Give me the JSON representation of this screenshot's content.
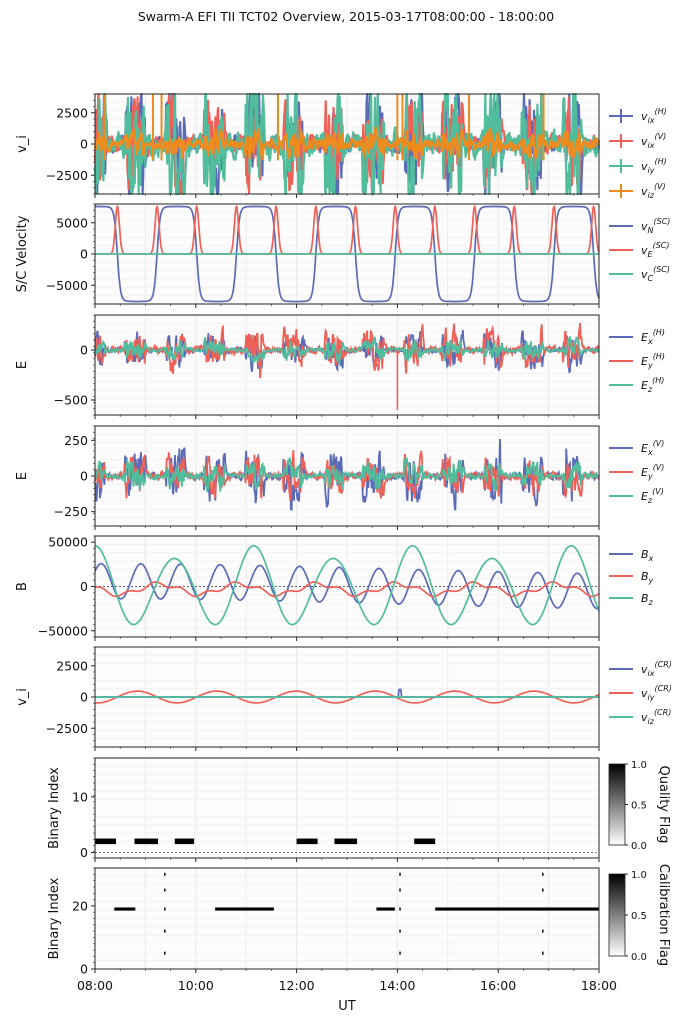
{
  "figure_title": "Swarm-A EFI TII TCT02 Overview, 2015-03-17T08:00:00 - 18:00:00",
  "colors": {
    "blue": "#5b6bb6",
    "red": "#ee6158",
    "teal": "#52bd9d",
    "orange": "#ed8b1e"
  },
  "chart_data": [
    {
      "type": "line",
      "ylabel": "v_i",
      "ylim": [
        -4000,
        4000
      ],
      "y_ticks": [
        2500,
        0,
        -2500
      ],
      "y_tick_labels": [
        "2500",
        "0",
        "−2500"
      ],
      "grid": true,
      "legend_position": "right",
      "series": [
        {
          "name": "v_ix^(H)",
          "color": "blue",
          "marker": "+",
          "approx_range": [
            -4000,
            4000
          ]
        },
        {
          "name": "v_ix^(V)",
          "color": "red",
          "marker": "+",
          "approx_range": [
            -4000,
            4000
          ]
        },
        {
          "name": "v_iy^(H)",
          "color": "teal",
          "marker": "+",
          "approx_range": [
            -4000,
            4000
          ]
        },
        {
          "name": "v_iz^(V)",
          "color": "orange",
          "marker": "+",
          "approx_range": [
            -1500,
            4000
          ]
        }
      ]
    },
    {
      "type": "line",
      "ylabel": "S/C Velocity",
      "ylim": [
        -8000,
        8000
      ],
      "y_ticks": [
        5000,
        0,
        -5000
      ],
      "y_tick_labels": [
        "5000",
        "0",
        "−5000"
      ],
      "grid": true,
      "legend_position": "right",
      "series": [
        {
          "name": "v_N^(SC)",
          "color": "blue",
          "approx_range": [
            -7600,
            7600
          ]
        },
        {
          "name": "v_E^(SC)",
          "color": "red",
          "approx_range": [
            0,
            7600
          ]
        },
        {
          "name": "v_C^(SC)",
          "color": "teal",
          "approx_range": [
            0,
            0
          ]
        }
      ]
    },
    {
      "type": "line",
      "ylabel": "E",
      "ylim": [
        -650,
        350
      ],
      "y_ticks": [
        0,
        -500
      ],
      "y_tick_labels": [
        "0",
        "−500"
      ],
      "grid": true,
      "legend_position": "right",
      "series": [
        {
          "name": "E_x^(H)",
          "color": "blue",
          "approx_range": [
            -200,
            300
          ]
        },
        {
          "name": "E_y^(H)",
          "color": "red",
          "approx_range": [
            -600,
            280
          ]
        },
        {
          "name": "E_z^(H)",
          "color": "teal",
          "approx_range": [
            -130,
            170
          ]
        }
      ]
    },
    {
      "type": "line",
      "ylabel": "E",
      "ylim": [
        -350,
        350
      ],
      "y_ticks": [
        250,
        0,
        -250
      ],
      "y_tick_labels": [
        "250",
        "0",
        "−250"
      ],
      "grid": true,
      "legend_position": "right",
      "series": [
        {
          "name": "E_x^(V)",
          "color": "blue",
          "approx_range": [
            -260,
            320
          ]
        },
        {
          "name": "E_y^(V)",
          "color": "red",
          "approx_range": [
            -310,
            210
          ]
        },
        {
          "name": "E_z^(V)",
          "color": "teal",
          "approx_range": [
            -160,
            140
          ]
        }
      ]
    },
    {
      "type": "line",
      "ylabel": "B",
      "ylim": [
        -57000,
        57000
      ],
      "y_ticks": [
        50000,
        0,
        -50000
      ],
      "y_tick_labels": [
        "50000",
        "0",
        "−50000"
      ],
      "grid": true,
      "legend_position": "right",
      "series": [
        {
          "name": "B_x",
          "color": "blue",
          "approx_range": [
            -28000,
            30000
          ]
        },
        {
          "name": "B_y",
          "color": "red",
          "approx_range": [
            -12000,
            7000
          ]
        },
        {
          "name": "B_z",
          "color": "teal",
          "approx_range": [
            -52000,
            48000
          ]
        }
      ]
    },
    {
      "type": "line",
      "ylabel": "v_i",
      "ylim": [
        -4000,
        4000
      ],
      "y_ticks": [
        2500,
        0,
        -2500
      ],
      "y_tick_labels": [
        "2500",
        "0",
        "−2500"
      ],
      "grid": true,
      "legend_position": "right",
      "series": [
        {
          "name": "v_ix^(CR)",
          "color": "blue",
          "approx_range": [
            -150,
            650
          ]
        },
        {
          "name": "v_iy^(CR)",
          "color": "red",
          "approx_range": [
            -470,
            470
          ]
        },
        {
          "name": "v_iz^(CR)",
          "color": "teal",
          "approx_range": [
            0,
            0
          ]
        }
      ]
    },
    {
      "type": "heatmap",
      "ylabel": "Binary Index",
      "ylim": [
        -1,
        17
      ],
      "y_ticks": [
        10,
        0
      ],
      "y_tick_labels": [
        "10",
        "0"
      ],
      "colorbar_label": "Quality Flag",
      "colorbar_range": [
        0,
        1
      ],
      "colorbar_ticks": [
        "1.0",
        "0.5",
        "0.0"
      ],
      "set_bits": [
        {
          "bit": 2,
          "intervals": [
            [
              "08:00",
              "08:25"
            ],
            [
              "08:47",
              "09:15"
            ],
            [
              "09:35",
              "09:58"
            ],
            [
              "12:00",
              "12:25"
            ],
            [
              "12:45",
              "13:12"
            ],
            [
              "14:20",
              "14:45"
            ]
          ]
        }
      ]
    },
    {
      "type": "heatmap",
      "ylabel": "Binary Index",
      "ylim": [
        0,
        32
      ],
      "y_ticks": [
        20,
        0
      ],
      "y_tick_labels": [
        "20",
        "0"
      ],
      "colorbar_label": "Calibration Flag",
      "colorbar_range": [
        0,
        1
      ],
      "colorbar_ticks": [
        "1.0",
        "0.5",
        "0.0"
      ],
      "set_bits": [
        {
          "bit": 19,
          "intervals": [
            [
              "08:23",
              "08:48"
            ],
            [
              "10:23",
              "11:33"
            ],
            [
              "13:35",
              "13:57"
            ],
            [
              "14:45",
              "18:00"
            ]
          ]
        }
      ],
      "spikes_at": [
        "09:23",
        "14:03",
        "16:53"
      ]
    }
  ],
  "x_axis": {
    "label": "UT",
    "range": [
      "08:00",
      "18:00"
    ],
    "ticks": [
      "08:00",
      "10:00",
      "12:00",
      "14:00",
      "16:00",
      "18:00"
    ]
  }
}
